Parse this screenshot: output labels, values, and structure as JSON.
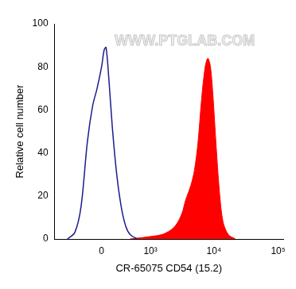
{
  "chart_data": {
    "type": "line",
    "x_label": "CR-65075 CD54 (15.2)",
    "y_label": "Relative cell number",
    "annotation": "WWW.PTGLAB.COM",
    "log": "x",
    "grid": false,
    "xlim": [
      -930,
      120000
    ],
    "xticks": [
      0,
      {
        "value": 1000,
        "label": "10³"
      },
      {
        "value": 10000,
        "label": "10⁴"
      },
      {
        "value": 100000,
        "label": "10⁵"
      }
    ],
    "ylim": [
      0,
      100
    ],
    "yticks": [
      0,
      20,
      40,
      60,
      80,
      100
    ],
    "series": [
      {
        "type": "line",
        "color": "#1c1c8f",
        "x": [
          -555,
          -399,
          -288,
          -191,
          -116,
          -58,
          0,
          34,
          58,
          93,
          141,
          204,
          273,
          349,
          435,
          592
        ],
        "values": [
          0,
          3,
          15,
          45,
          62,
          70,
          80,
          88,
          89,
          75,
          52,
          30,
          15,
          6,
          2,
          0
        ]
      },
      {
        "type": "area",
        "color": "#ff0000",
        "x": [
          435,
          910,
          1507,
          2088,
          2629,
          3183,
          3618,
          4383,
          4980,
          5660,
          6430,
          7310,
          8050,
          8850,
          9750,
          10740,
          12190,
          13860,
          16790,
          21660
        ],
        "values": [
          0,
          1,
          2,
          4,
          7,
          12,
          18,
          25,
          32,
          45,
          65,
          80,
          84,
          80,
          65,
          45,
          22,
          8,
          2,
          0
        ]
      }
    ]
  }
}
